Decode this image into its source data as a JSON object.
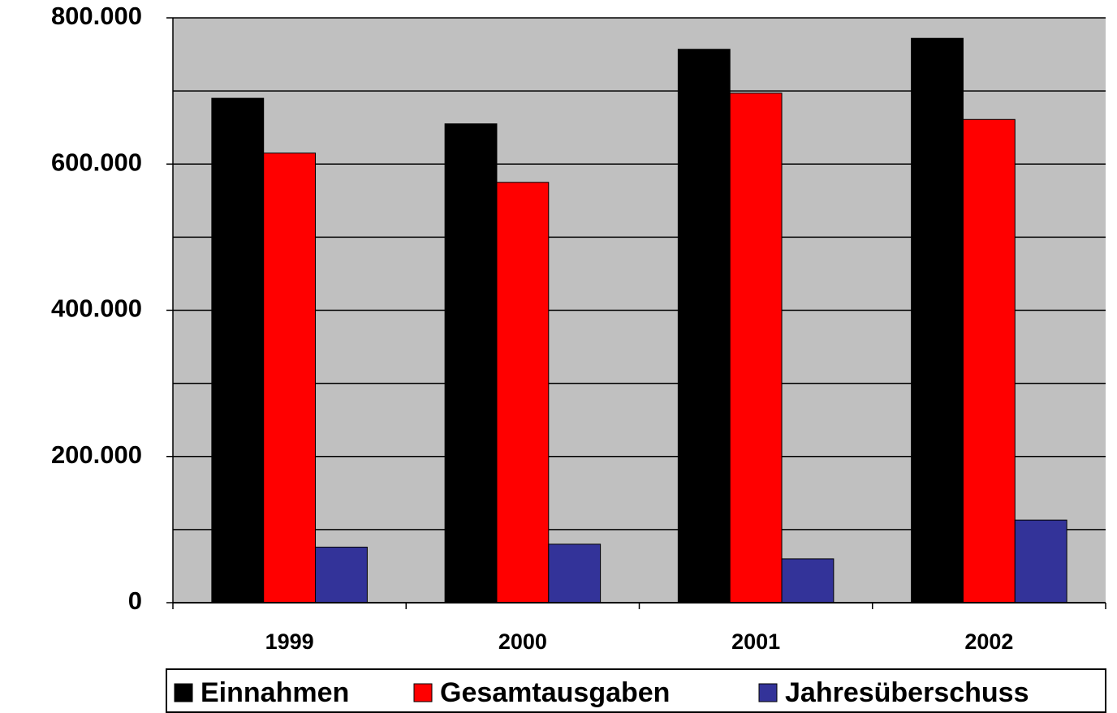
{
  "chart_data": {
    "type": "bar",
    "categories": [
      "1999",
      "2000",
      "2001",
      "2002"
    ],
    "series": [
      {
        "name": "Einnahmen",
        "color": "#000000",
        "values": [
          690000,
          655000,
          757000,
          772000
        ]
      },
      {
        "name": "Gesamtausgaben",
        "color": "#ff0000",
        "values": [
          615000,
          575000,
          697000,
          661000
        ]
      },
      {
        "name": "Jahresüberschuss",
        "color": "#333399",
        "values": [
          76000,
          80000,
          60000,
          113000
        ]
      }
    ],
    "ylim": [
      0,
      800000
    ],
    "yticks": [
      0,
      {
        "value": 200000,
        "label": "200.000"
      },
      {
        "value": 400000,
        "label": "400.000"
      },
      {
        "value": 600000,
        "label": "600.000"
      },
      {
        "value": 800000,
        "label": "800.000"
      }
    ],
    "ygrid_minor": [
      100000,
      300000,
      500000,
      700000
    ],
    "grid": true,
    "legend": "bottom"
  }
}
